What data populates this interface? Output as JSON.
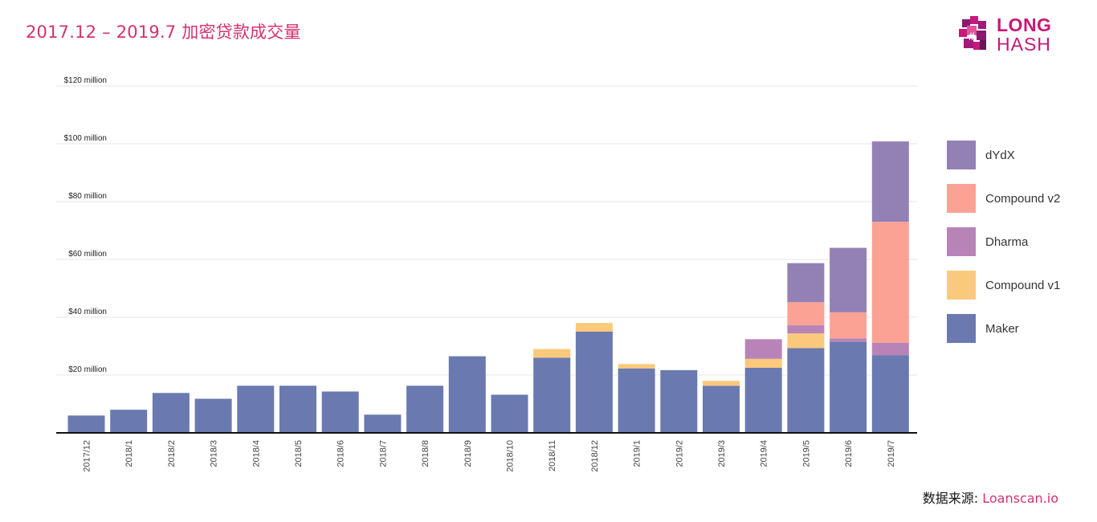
{
  "header": {
    "title": "2017.12 – 2019.7 加密贷款成交量",
    "logo_line1": "LONG",
    "logo_line2": "HASH"
  },
  "source": {
    "label": "数据来源: ",
    "link": "Loanscan.io"
  },
  "colors": {
    "title": "#d6306f",
    "dYdX": "#9381b6",
    "Compound v2": "#fba294",
    "Dharma": "#b884b8",
    "Compound v1": "#fbc97c",
    "Maker": "#6a7ab0"
  },
  "chart_data": {
    "type": "bar",
    "stacked": true,
    "categories": [
      "2017/12",
      "2018/1",
      "2018/2",
      "2018/3",
      "2018/4",
      "2018/5",
      "2018/6",
      "2018/7",
      "2018/8",
      "2018/9",
      "2018/10",
      "2018/11",
      "2018/12",
      "2019/1",
      "2019/2",
      "2019/3",
      "2019/4",
      "2019/5",
      "2019/6",
      "2019/7"
    ],
    "series": [
      {
        "name": "Maker",
        "color": "#6a7ab0",
        "values": [
          6,
          8,
          13.8,
          11.8,
          16.3,
          16.3,
          14.3,
          6.3,
          16.3,
          26.5,
          13.2,
          26,
          35,
          22.3,
          21.7,
          16.3,
          22.5,
          29.3,
          31.5,
          26.8
        ]
      },
      {
        "name": "Compound v1",
        "color": "#fbc97c",
        "values": [
          0,
          0,
          0,
          0,
          0,
          0,
          0,
          0,
          0,
          0,
          0,
          3,
          3,
          1.5,
          0,
          1.7,
          3.1,
          5.1,
          0,
          0
        ]
      },
      {
        "name": "Dharma",
        "color": "#b884b8",
        "values": [
          0,
          0,
          0,
          0,
          0,
          0,
          0,
          0,
          0,
          0,
          0,
          0,
          0,
          0,
          0,
          0,
          6.8,
          2.8,
          1.2,
          4.4
        ]
      },
      {
        "name": "Compound v2",
        "color": "#fba294",
        "values": [
          0,
          0,
          0,
          0,
          0,
          0,
          0,
          0,
          0,
          0,
          0,
          0,
          0,
          0,
          0,
          0,
          0,
          8,
          9,
          41.8
        ]
      },
      {
        "name": "dYdX",
        "color": "#9381b6",
        "values": [
          0,
          0,
          0,
          0,
          0,
          0,
          0,
          0,
          0,
          0,
          0,
          0,
          0,
          0,
          0,
          0,
          0,
          13.5,
          22.3,
          27.8
        ]
      }
    ],
    "legend_order": [
      "dYdX",
      "Compound v2",
      "Dharma",
      "Compound v1",
      "Maker"
    ],
    "yticks": [
      "$20 million",
      "$40 million",
      "$60 million",
      "$80 million",
      "$100 million",
      "$120 million"
    ],
    "ytick_values": [
      20,
      40,
      60,
      80,
      100,
      120
    ],
    "ylim": [
      0,
      120
    ],
    "legend_position": "right",
    "grid": true
  }
}
